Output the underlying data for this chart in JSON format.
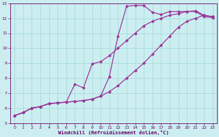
{
  "xlabel": "Windchill (Refroidissement éolien,°C)",
  "bg_color": "#cceef0",
  "line_color": "#993399",
  "grid_color": "#aadddd",
  "axis_label_color": "#660066",
  "tick_color": "#660066",
  "xlim": [
    -0.5,
    23.5
  ],
  "ylim": [
    5,
    13
  ],
  "xticks": [
    0,
    1,
    2,
    3,
    4,
    5,
    6,
    7,
    8,
    9,
    10,
    11,
    12,
    13,
    14,
    15,
    16,
    17,
    18,
    19,
    20,
    21,
    22,
    23
  ],
  "yticks": [
    5,
    6,
    7,
    8,
    9,
    10,
    11,
    12,
    13
  ],
  "line1_x": [
    0,
    1,
    2,
    3,
    4,
    5,
    6,
    7,
    8,
    9,
    10,
    11,
    12,
    13,
    14,
    15,
    16,
    17,
    18,
    19,
    20,
    21,
    22,
    23
  ],
  "line1_y": [
    5.5,
    5.7,
    6.0,
    6.1,
    6.3,
    6.35,
    6.4,
    6.45,
    6.5,
    6.6,
    6.8,
    7.1,
    7.5,
    8.0,
    8.5,
    9.0,
    9.6,
    10.2,
    10.8,
    11.4,
    11.8,
    12.0,
    12.2,
    12.1
  ],
  "line2_x": [
    0,
    1,
    2,
    3,
    4,
    5,
    6,
    7,
    8,
    9,
    10,
    11,
    12,
    13,
    14,
    15,
    16,
    17,
    18,
    19,
    20,
    21,
    22,
    23
  ],
  "line2_y": [
    5.5,
    5.7,
    6.0,
    6.1,
    6.3,
    6.35,
    6.4,
    6.45,
    6.5,
    6.6,
    6.8,
    8.1,
    10.8,
    12.8,
    12.85,
    12.85,
    12.4,
    12.25,
    12.45,
    12.45,
    12.45,
    12.45,
    12.1,
    12.05
  ],
  "line3_x": [
    0,
    1,
    2,
    3,
    4,
    5,
    6,
    7,
    8,
    9,
    10,
    11,
    12,
    13,
    14,
    15,
    16,
    17,
    18,
    19,
    20,
    21,
    22,
    23
  ],
  "line3_y": [
    5.5,
    5.7,
    6.0,
    6.1,
    6.3,
    6.35,
    6.4,
    7.6,
    7.35,
    8.95,
    9.1,
    9.5,
    10.0,
    10.5,
    11.0,
    11.5,
    11.8,
    12.0,
    12.2,
    12.3,
    12.45,
    12.5,
    12.2,
    12.1
  ],
  "marker": "D",
  "markersize": 2.2,
  "linewidth": 0.9
}
